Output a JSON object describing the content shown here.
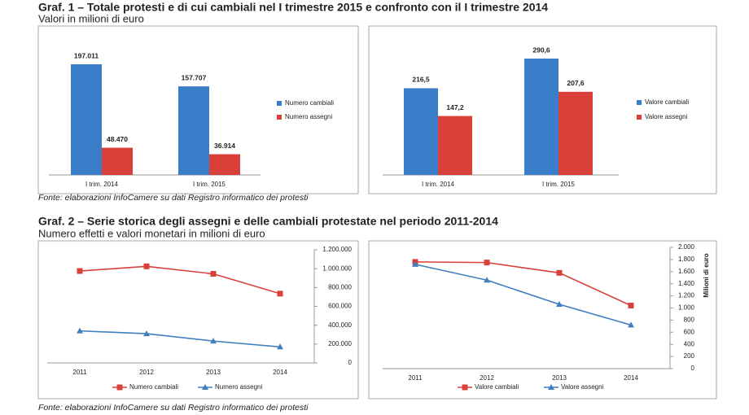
{
  "sections": [
    {
      "title": "Graf. 1 – Totale protesti e di cui cambiali nel I trimestre 2015 e confronto con il I trimestre 2014",
      "subtitle": "Valori in milioni di euro",
      "source": "Fonte: elaborazioni InfoCamere su dati Registro informatico dei protesti"
    },
    {
      "title": "Graf. 2 – Serie storica degli assegni e delle cambiali protestate nel periodo 2011-2014",
      "subtitle": "Numero effetti e valori monetari in milioni di euro",
      "source": "Fonte: elaborazioni InfoCamere su dati Registro informatico dei protesti"
    }
  ],
  "chart_data": [
    {
      "type": "bar",
      "categories": [
        "I trim. 2014",
        "I trim. 2015"
      ],
      "series": [
        {
          "name": "Numero cambiali",
          "color": "#3a7dc9",
          "values": [
            197011,
            157707
          ],
          "value_labels": [
            "197.011",
            "157.707"
          ]
        },
        {
          "name": "Numero assegni",
          "color": "#d9403a",
          "values": [
            48470,
            36914
          ],
          "value_labels": [
            "48.470",
            "36.914"
          ]
        }
      ]
    },
    {
      "type": "bar",
      "categories": [
        "I trim. 2014",
        "I trim. 2015"
      ],
      "series": [
        {
          "name": "Valore cambiali",
          "color": "#3a7dc9",
          "values": [
            216.5,
            290.6
          ],
          "value_labels": [
            "216,5",
            "290,6"
          ]
        },
        {
          "name": "Valore assegni",
          "color": "#d9403a",
          "values": [
            147.2,
            207.6
          ],
          "value_labels": [
            "147,2",
            "207,6"
          ]
        }
      ]
    },
    {
      "type": "line",
      "categories": [
        "2011",
        "2012",
        "2013",
        "2014"
      ],
      "series": [
        {
          "name": "Numero cambiali",
          "color": "#d9403a",
          "values": [
            975000,
            1025000,
            945000,
            735000
          ]
        },
        {
          "name": "Numero assegni",
          "color": "#3f7fbf",
          "values": [
            340000,
            310000,
            232000,
            170000
          ]
        }
      ],
      "ylim": [
        0,
        1200000
      ],
      "yticks": [
        0,
        {
          "value": 200000,
          "label": "200.000"
        },
        {
          "value": 400000,
          "label": "400.000"
        },
        {
          "value": 600000,
          "label": "600.000"
        },
        {
          "value": 800000,
          "label": "800.000"
        },
        {
          "value": 1000000,
          "label": "1.000.000"
        },
        {
          "value": 1200000,
          "label": "1.200.000"
        }
      ]
    },
    {
      "type": "line",
      "categories": [
        "2011",
        "2012",
        "2013",
        "2014"
      ],
      "ylabel": "Milioni di euro",
      "series": [
        {
          "name": "Valore cambiali",
          "color": "#d9403a",
          "values": [
            1760,
            1750,
            1580,
            1040
          ]
        },
        {
          "name": "Valore assegni",
          "color": "#3f7fbf",
          "values": [
            1720,
            1460,
            1060,
            720
          ]
        }
      ],
      "ylim": [
        0,
        2000
      ],
      "yticks": [
        0,
        200,
        400,
        600,
        800,
        {
          "value": 1000,
          "label": "1.000"
        },
        {
          "value": 1200,
          "label": "1.200"
        },
        {
          "value": 1400,
          "label": "1.400"
        },
        {
          "value": 1600,
          "label": "1.600"
        },
        {
          "value": 1800,
          "label": "1.800"
        },
        {
          "value": 2000,
          "label": "2.000"
        }
      ]
    }
  ]
}
